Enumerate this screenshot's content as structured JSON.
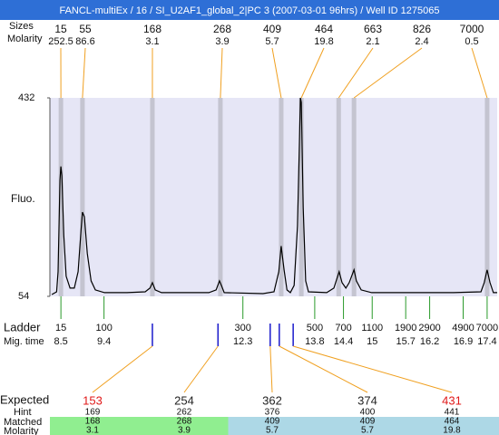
{
  "header": {
    "title": "FANCL-multiEx / 16 / SI_U2AF1_global_2|PC 3 (2007-03-01 96hrs) / Well ID 1275065"
  },
  "chart_data": {
    "type": "line",
    "y_label": "Fluo.",
    "ylim": [
      54,
      432
    ],
    "yticks": [
      54,
      432
    ],
    "xlim": [
      8.27,
      17.61
    ],
    "color": "#000000",
    "plot_color": "#e6e6f6",
    "x": [
      8.31,
      8.41,
      8.44,
      8.48,
      8.5,
      8.52,
      8.56,
      8.61,
      8.69,
      8.78,
      8.86,
      8.92,
      8.95,
      8.99,
      9.05,
      9.13,
      9.22,
      9.41,
      9.88,
      10.26,
      10.36,
      10.41,
      10.47,
      10.6,
      11.59,
      11.74,
      11.81,
      11.85,
      11.91,
      12.72,
      12.95,
      13.05,
      13.1,
      13.16,
      13.22,
      13.29,
      13.37,
      13.44,
      13.48,
      13.5,
      13.52,
      13.56,
      13.61,
      13.67,
      14.05,
      14.2,
      14.28,
      14.31,
      14.37,
      14.45,
      14.52,
      14.62,
      14.67,
      14.77,
      14.99,
      16.7,
      17.27,
      17.34,
      17.4,
      17.46,
      17.53,
      17.61
    ],
    "values": [
      57.5,
      62.7,
      101,
      275.2,
      301.3,
      283.9,
      170.7,
      92.3,
      69.7,
      69.7,
      101,
      179.4,
      214.3,
      205.6,
      135.9,
      83.6,
      66.2,
      61,
      61,
      62.7,
      69.7,
      80.1,
      66.2,
      61,
      61,
      66.2,
      83.6,
      74.9,
      61,
      59.2,
      62.7,
      101,
      149.8,
      104.5,
      66.2,
      61,
      74.9,
      188.1,
      344.9,
      432,
      423.3,
      223,
      83.6,
      62.7,
      61,
      69.7,
      92.3,
      101,
      80.1,
      69.7,
      80.1,
      104.5,
      83.6,
      66.2,
      61,
      61,
      62.7,
      80.1,
      104.5,
      80.1,
      61,
      61
    ],
    "peaks_label": "Sizes",
    "peaks_molarity_label": "Molarity",
    "peaks": [
      {
        "size": 15,
        "molarity": 252.5,
        "time": 8.5
      },
      {
        "size": 55,
        "molarity": 86.6,
        "time": 8.95
      },
      {
        "size": 168,
        "molarity": 3.1,
        "time": 10.41
      },
      {
        "size": 268,
        "molarity": 3.9,
        "time": 11.83
      },
      {
        "size": 409,
        "molarity": 5.7,
        "time": 13.1
      },
      {
        "size": 464,
        "molarity": 19.8,
        "time": 13.52
      },
      {
        "size": 663,
        "molarity": 2.1,
        "time": 14.3
      },
      {
        "size": 826,
        "molarity": 2.4,
        "time": 14.62
      },
      {
        "size": 7000,
        "molarity": 0.5,
        "time": 17.4
      }
    ],
    "ladder_label": "Ladder",
    "time_label": "Mig. time",
    "ladder": {
      "sizes": [
        15,
        100,
        300,
        500,
        700,
        1100,
        1900,
        2900,
        4900,
        7000
      ],
      "times": [
        8.5,
        9.4,
        12.3,
        13.8,
        14.4,
        15,
        15.7,
        16.2,
        16.9,
        17.4
      ]
    },
    "expected_label": "Expected",
    "hint_label": "Hint",
    "matched_label": "Matched",
    "molarity_label": "Molarity",
    "expected": [
      {
        "size": 153,
        "hint": 169,
        "matched": 168,
        "molarity": 3.1,
        "time": 10.41,
        "color": "#e01818",
        "row_color": "#90ee90"
      },
      {
        "size": 254,
        "hint": 262,
        "matched": 268,
        "molarity": 3.9,
        "time": 11.78,
        "color": "#222222",
        "row_color": "#90ee90"
      },
      {
        "size": 362,
        "hint": 376,
        "matched": 409,
        "molarity": 5.7,
        "time": 12.87,
        "color": "#222222",
        "row_color": "#add8e6"
      },
      {
        "size": 374,
        "hint": 400,
        "matched": 409,
        "molarity": 5.7,
        "time": 13.06,
        "color": "#222222",
        "row_color": "#add8e6"
      },
      {
        "size": 431,
        "hint": 441,
        "matched": 464,
        "molarity": 19.8,
        "time": 13.35,
        "color": "#e01818",
        "row_color": "#add8e6"
      }
    ]
  }
}
